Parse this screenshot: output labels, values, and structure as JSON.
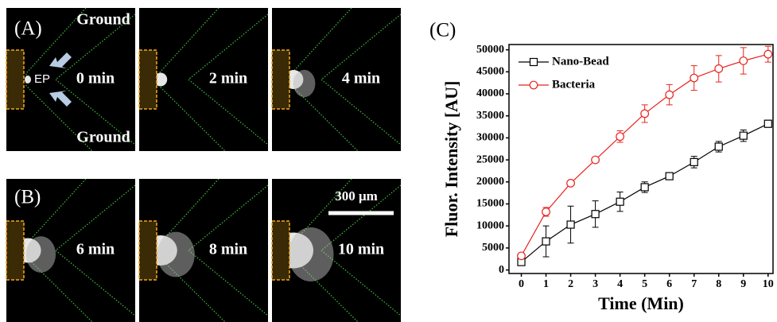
{
  "figure": {
    "panel_labels": [
      "(A)",
      "(B)",
      "(C)"
    ],
    "frames": [
      "0 min",
      "2 min",
      "4 min",
      "6 min",
      "8 min",
      "10 min"
    ],
    "ground_labels": [
      "Ground",
      "Ground"
    ],
    "ep_label": "EP",
    "scale_bar": "300 μm"
  },
  "chart_data": {
    "type": "line",
    "x_label": "Time (Min)",
    "y_label": "Fluor. Intensity [AU]",
    "x": [
      0,
      1,
      2,
      3,
      4,
      5,
      6,
      7,
      8,
      9,
      10
    ],
    "series": [
      {
        "name": "Nano-Bead",
        "color": "#000000",
        "marker": "square",
        "values": [
          1800,
          6500,
          10300,
          12700,
          15500,
          18800,
          21300,
          24500,
          28000,
          30500,
          33200
        ],
        "errors": [
          500,
          3500,
          4200,
          3000,
          2200,
          1200,
          500,
          1300,
          1200,
          1300,
          800
        ]
      },
      {
        "name": "Bacteria",
        "color": "#e8231f",
        "marker": "circle",
        "values": [
          3200,
          13200,
          19700,
          25000,
          30300,
          35500,
          39800,
          43600,
          45700,
          47500,
          49000
        ],
        "errors": [
          500,
          1000,
          400,
          400,
          1300,
          2000,
          2300,
          2800,
          3000,
          3000,
          1800
        ]
      }
    ],
    "xlim": [
      -0.5,
      10.2
    ],
    "ylim": [
      -800,
      51200
    ],
    "xticks": [
      0,
      1,
      2,
      3,
      4,
      5,
      6,
      7,
      8,
      9,
      10
    ],
    "yticks": [
      0,
      5000,
      10000,
      15000,
      20000,
      25000,
      30000,
      35000,
      40000,
      45000,
      50000
    ],
    "legend": "upper left"
  }
}
